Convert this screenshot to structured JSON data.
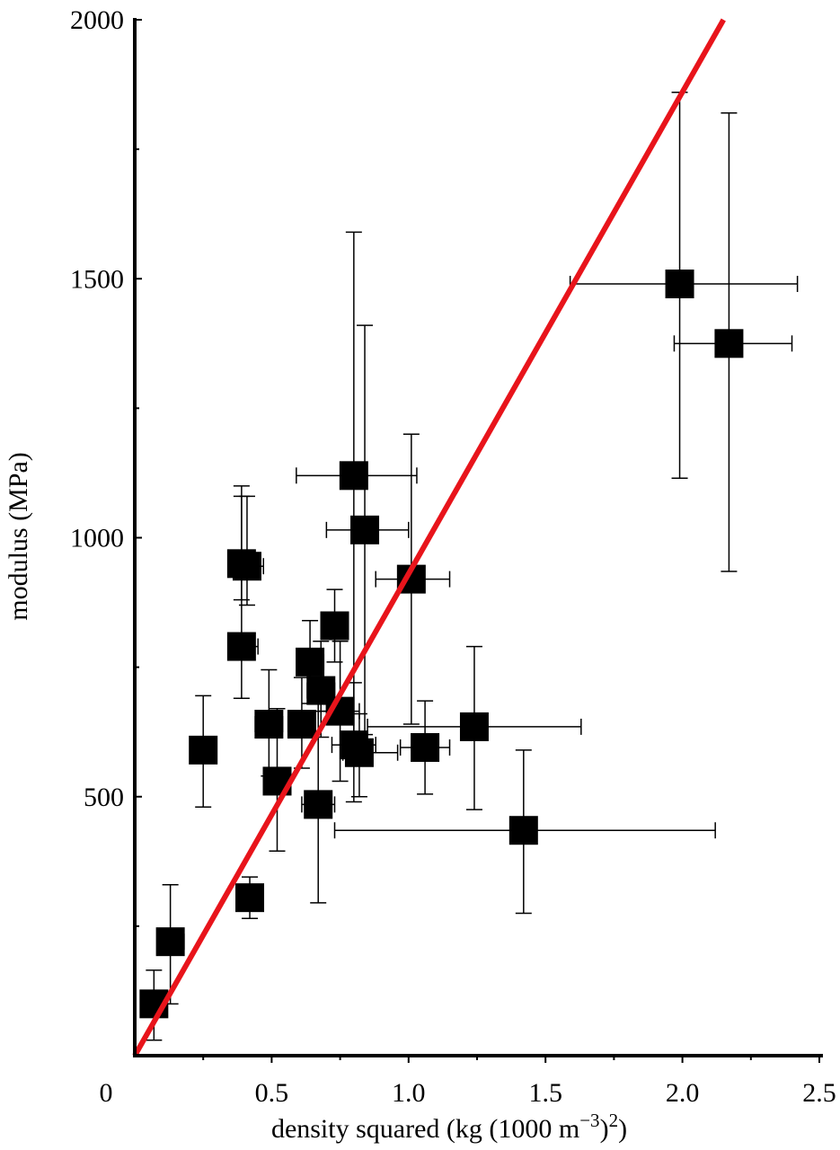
{
  "chart_data": {
    "type": "scatter",
    "title": "",
    "xlabel": "density squared (kg (1000 m",
    "xlabel_sup1": "−3",
    "xlabel_mid": ")",
    "xlabel_sup2": "2",
    "xlabel_end": ")",
    "ylabel": "modulus (MPa)",
    "xlim": [
      0,
      2.5
    ],
    "ylim": [
      0,
      2000
    ],
    "x_ticks": [
      0,
      0.5,
      1.0,
      1.5,
      2.0,
      2.5
    ],
    "x_tick_labels": [
      "0",
      "0.5",
      "1.0",
      "1.5",
      "2.0",
      "2.5"
    ],
    "y_ticks": [
      500,
      1000,
      1500,
      2000
    ],
    "y_tick_labels": [
      "500",
      "1000",
      "1500",
      "2000"
    ],
    "grid": false,
    "marker": "filled-square",
    "marker_color": "#000000",
    "points": [
      {
        "x": 0.07,
        "y": 100,
        "xerr": [
          0.04,
          0.1
        ],
        "yerr": [
          30,
          165
        ]
      },
      {
        "x": 0.13,
        "y": 220,
        "xerr": [
          0.09,
          0.18
        ],
        "yerr": [
          100,
          330
        ]
      },
      {
        "x": 0.25,
        "y": 590,
        "xerr": [
          0.24,
          0.29
        ],
        "yerr": [
          480,
          695
        ]
      },
      {
        "x": 0.42,
        "y": 305,
        "xerr": [
          0.4,
          0.44
        ],
        "yerr": [
          265,
          345
        ]
      },
      {
        "x": 0.39,
        "y": 950,
        "xerr": [
          0.36,
          0.43
        ],
        "yerr": [
          880,
          1100
        ]
      },
      {
        "x": 0.39,
        "y": 790,
        "xerr": [
          0.36,
          0.45
        ],
        "yerr": [
          690,
          1080
        ]
      },
      {
        "x": 0.41,
        "y": 945,
        "xerr": [
          0.38,
          0.47
        ],
        "yerr": [
          870,
          1080
        ]
      },
      {
        "x": 0.49,
        "y": 640,
        "xerr": [
          0.44,
          0.54
        ],
        "yerr": [
          540,
          745
        ]
      },
      {
        "x": 0.52,
        "y": 530,
        "xerr": [
          0.48,
          0.57
        ],
        "yerr": [
          395,
          670
        ]
      },
      {
        "x": 0.61,
        "y": 640,
        "xerr": [
          0.56,
          0.66
        ],
        "yerr": [
          555,
          730
        ]
      },
      {
        "x": 0.64,
        "y": 760,
        "xerr": [
          0.6,
          0.69
        ],
        "yerr": [
          680,
          840
        ]
      },
      {
        "x": 0.67,
        "y": 485,
        "xerr": [
          0.61,
          0.73
        ],
        "yerr": [
          295,
          665
        ]
      },
      {
        "x": 0.68,
        "y": 705,
        "xerr": [
          0.63,
          0.73
        ],
        "yerr": [
          615,
          800
        ]
      },
      {
        "x": 0.73,
        "y": 830,
        "xerr": [
          0.7,
          0.77
        ],
        "yerr": [
          760,
          900
        ]
      },
      {
        "x": 0.75,
        "y": 665,
        "xerr": [
          0.67,
          0.82
        ],
        "yerr": [
          530,
          800
        ]
      },
      {
        "x": 0.8,
        "y": 600,
        "xerr": [
          0.72,
          0.88
        ],
        "yerr": [
          490,
          720
        ]
      },
      {
        "x": 0.8,
        "y": 1120,
        "xerr": [
          0.59,
          1.03
        ],
        "yerr": [
          580,
          1590
        ]
      },
      {
        "x": 0.82,
        "y": 585,
        "xerr": [
          0.76,
          0.96
        ],
        "yerr": [
          500,
          660
        ]
      },
      {
        "x": 0.84,
        "y": 1015,
        "xerr": [
          0.7,
          1.0
        ],
        "yerr": [
          620,
          1410
        ]
      },
      {
        "x": 1.01,
        "y": 920,
        "xerr": [
          0.88,
          1.15
        ],
        "yerr": [
          640,
          1200
        ]
      },
      {
        "x": 1.06,
        "y": 595,
        "xerr": [
          0.97,
          1.15
        ],
        "yerr": [
          505,
          685
        ]
      },
      {
        "x": 1.24,
        "y": 635,
        "xerr": [
          0.85,
          1.63
        ],
        "yerr": [
          475,
          790
        ]
      },
      {
        "x": 1.42,
        "y": 435,
        "xerr": [
          0.73,
          2.12
        ],
        "yerr": [
          275,
          590
        ]
      },
      {
        "x": 1.99,
        "y": 1490,
        "xerr": [
          1.59,
          2.42
        ],
        "yerr": [
          1115,
          1860
        ]
      },
      {
        "x": 2.17,
        "y": 1375,
        "xerr": [
          1.97,
          2.4
        ],
        "yerr": [
          935,
          1820
        ]
      }
    ],
    "fit_line": {
      "type": "linear",
      "x": [
        0,
        2.15
      ],
      "y": [
        0,
        2000
      ],
      "color": "#e8141b"
    }
  }
}
